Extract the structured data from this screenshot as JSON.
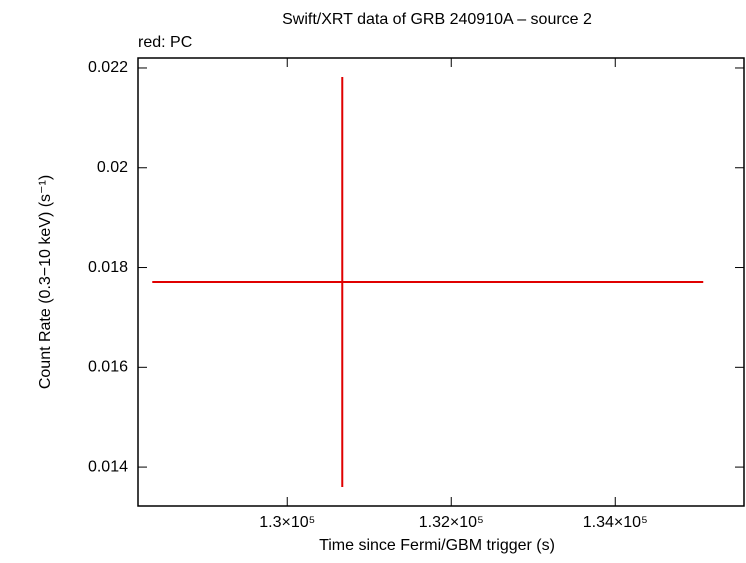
{
  "chart_data": {
    "type": "errorbar",
    "title": "Swift/XRT data of GRB 240910A – source 2",
    "subtitle": "red: PC",
    "x_label": "Time since Fermi/GBM trigger (s)",
    "y_label": "Count Rate (0.3−10 keV) (s⁻¹)",
    "series": [
      {
        "color": "#e00000",
        "x": [
          130671
        ],
        "x_err_minus": [
          2317
        ],
        "x_err_plus": [
          4402
        ],
        "values": [
          0.01771
        ],
        "y_err": [
          0.00411
        ]
      }
    ],
    "xlim": [
      128180,
      135570
    ],
    "xticks": [
      {
        "value": 130000,
        "label": "1.3×10⁵"
      },
      {
        "value": 132000,
        "label": "1.32×10⁵"
      },
      {
        "value": 134000,
        "label": "1.34×10⁵"
      }
    ],
    "ylim": [
      0.01322,
      0.0222
    ],
    "yticks": [
      0.014,
      0.016,
      0.018,
      0.02,
      0.022
    ]
  }
}
